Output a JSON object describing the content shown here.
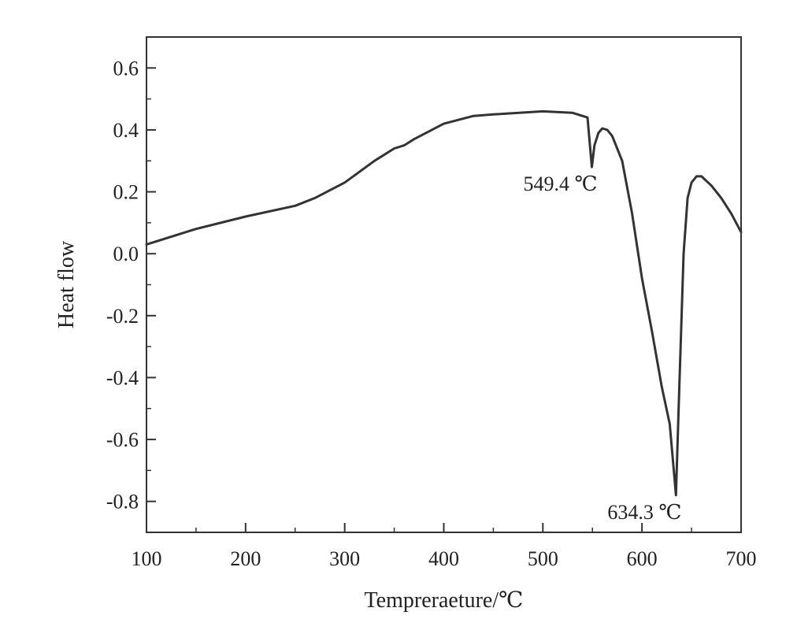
{
  "chart_data": {
    "type": "line",
    "title": "",
    "xlabel": "Tempreraeture/℃",
    "ylabel": "Heat flow",
    "xlim": [
      100,
      700
    ],
    "ylim": [
      -0.9,
      0.7
    ],
    "x_ticks": [
      100,
      200,
      300,
      400,
      500,
      600,
      700
    ],
    "x_tick_labels": [
      "100",
      "200",
      "300",
      "400",
      "500",
      "600",
      "700"
    ],
    "y_ticks": [
      0.6,
      0.4,
      0.2,
      0.0,
      -0.2,
      -0.4,
      -0.6,
      -0.8
    ],
    "y_tick_labels": [
      "0.6",
      "0.4",
      "0.2",
      "0.0",
      "-0.2",
      "-0.4",
      "-0.6",
      "-0.8"
    ],
    "grid": false,
    "legend": "none",
    "series": [
      {
        "color": "#333333",
        "x": [
          100,
          150,
          200,
          250,
          270,
          300,
          330,
          350,
          360,
          370,
          400,
          430,
          450,
          500,
          530,
          545,
          549.4,
          552,
          556,
          560,
          565,
          570,
          580,
          590,
          600,
          610,
          620,
          628,
          634.3,
          637,
          642,
          646,
          650,
          655,
          660,
          670,
          680,
          690,
          700
        ],
        "y": [
          0.03,
          0.08,
          0.12,
          0.155,
          0.18,
          0.23,
          0.3,
          0.34,
          0.35,
          0.37,
          0.42,
          0.445,
          0.45,
          0.46,
          0.455,
          0.44,
          0.28,
          0.35,
          0.39,
          0.405,
          0.4,
          0.38,
          0.3,
          0.13,
          -0.08,
          -0.25,
          -0.43,
          -0.55,
          -0.78,
          -0.5,
          0.0,
          0.18,
          0.23,
          0.25,
          0.25,
          0.22,
          0.18,
          0.13,
          0.07
        ]
      }
    ],
    "annotations": [
      {
        "text": "549.4 ℃",
        "x": 549.4,
        "y": 0.28
      },
      {
        "text": "634.3 ℃",
        "x": 634.3,
        "y": -0.78
      }
    ]
  }
}
